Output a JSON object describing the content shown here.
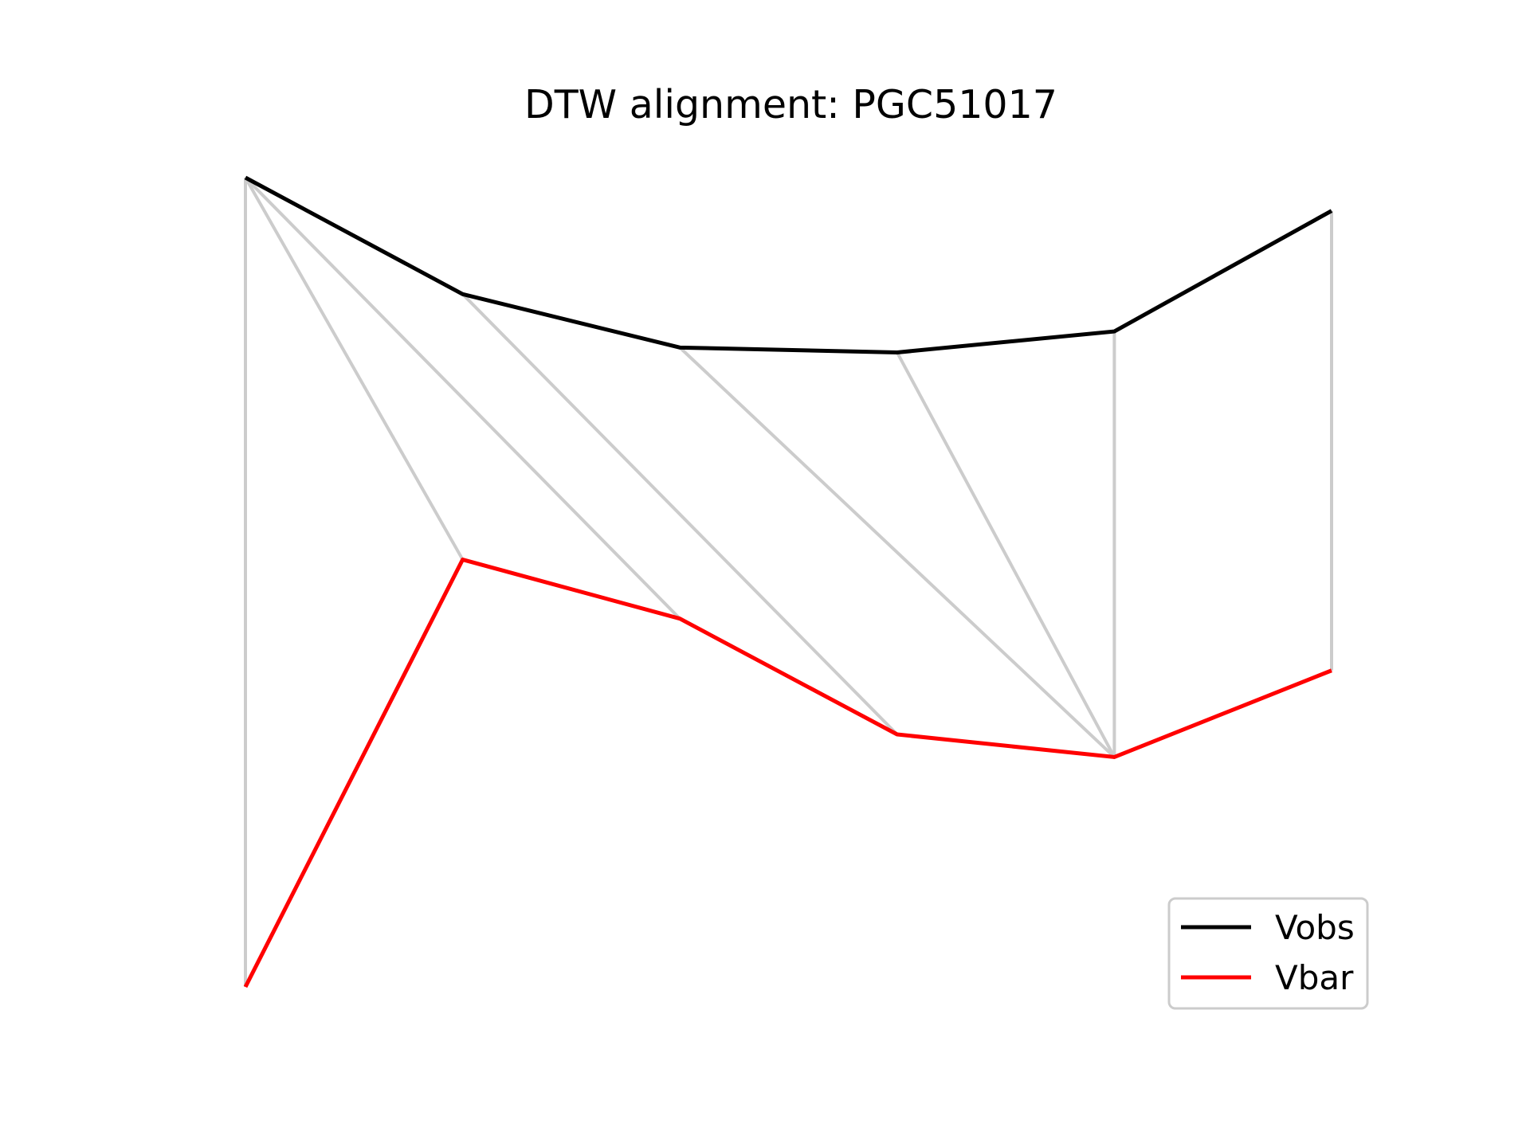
{
  "chart_data": {
    "type": "line",
    "title": "DTW alignment: PGC51017",
    "xlabel": "",
    "ylabel": "",
    "axes_visible": false,
    "grid": false,
    "legend_position": "lower right",
    "x": [
      0,
      1,
      2,
      3,
      4,
      5
    ],
    "series": [
      {
        "name": "Vobs",
        "color": "#000000",
        "values": [
          1.0,
          0.856,
          0.79,
          0.784,
          0.81,
          0.959
        ]
      },
      {
        "name": "Vbar",
        "color": "#ff0000",
        "values": [
          0.0,
          0.528,
          0.455,
          0.312,
          0.284,
          0.391
        ]
      }
    ],
    "alignment": {
      "color": "#cccccc",
      "pairs": [
        [
          0,
          0
        ],
        [
          0,
          1
        ],
        [
          0,
          2
        ],
        [
          1,
          3
        ],
        [
          2,
          4
        ],
        [
          3,
          4
        ],
        [
          4,
          4
        ],
        [
          5,
          5
        ]
      ]
    }
  }
}
